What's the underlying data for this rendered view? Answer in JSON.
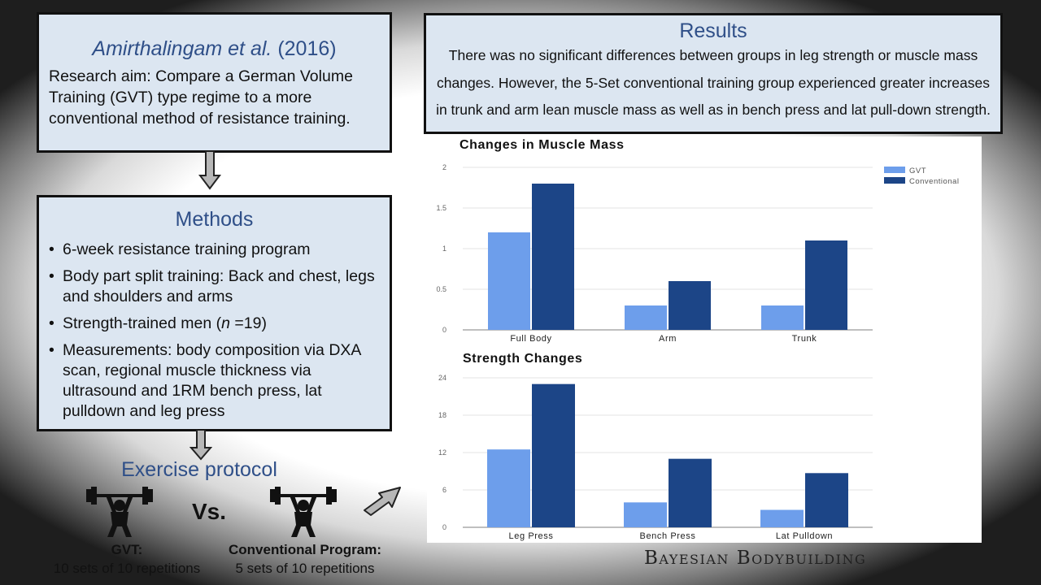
{
  "study": {
    "authors": "Amirthalingam et al.",
    "year": "(2016)",
    "aim": "Research aim:  Compare a German Volume Training (GVT) type regime to a more conventional method of resistance training."
  },
  "methods": {
    "title": "Methods",
    "items": [
      "6-week resistance training program",
      "Body part split training: Back and chest, legs and shoulders and arms",
      "Measurements: body composition via DXA scan, regional muscle thickness via ultrasound and 1RM bench press, lat pulldown and leg press"
    ],
    "subjects_prefix": "Strength-trained men (",
    "subjects_n": "n",
    "subjects_suffix": " =19)"
  },
  "protocol": {
    "title": "Exercise protocol",
    "vs": "Vs.",
    "gvt_label": "GVT:",
    "gvt_desc": "10 sets of 10 repetitions",
    "conv_label": "Conventional Program:",
    "conv_desc": "5 sets of 10 repetitions"
  },
  "results": {
    "title": "Results",
    "text": "There was no significant differences between groups in leg strength or muscle mass changes. However, the 5-Set conventional training group experienced greater increases in trunk and arm lean muscle mass as well as in bench press and lat pull-down strength."
  },
  "brand": "Bayesian Bodybuilding",
  "colors": {
    "gvt": "#6d9eeb",
    "conventional": "#1c4587",
    "box_fill": "#dce6f1",
    "heading": "#2f4f88"
  },
  "chart_data": [
    {
      "type": "bar",
      "title": "Changes in Muscle Mass",
      "categories": [
        "Full Body",
        "Arm",
        "Trunk"
      ],
      "series": [
        {
          "name": "GVT",
          "values": [
            1.2,
            0.3,
            0.3
          ]
        },
        {
          "name": "Conventional",
          "values": [
            1.8,
            0.6,
            1.1
          ]
        }
      ],
      "yticks": [
        "0",
        "0.5",
        "1",
        "1.5",
        "2"
      ],
      "ylim": [
        0,
        2
      ],
      "legend": "top-right",
      "grid": true
    },
    {
      "type": "bar",
      "title": "Strength Changes",
      "categories": [
        "Leg Press",
        "Bench Press",
        "Lat Pulldown"
      ],
      "series": [
        {
          "name": "GVT",
          "values": [
            12.5,
            4,
            2.8
          ]
        },
        {
          "name": "Conventional",
          "values": [
            23,
            11,
            8.7
          ]
        }
      ],
      "yticks": [
        "0",
        "6",
        "12",
        "18",
        "24"
      ],
      "ylim": [
        0,
        24
      ],
      "grid": true
    }
  ]
}
